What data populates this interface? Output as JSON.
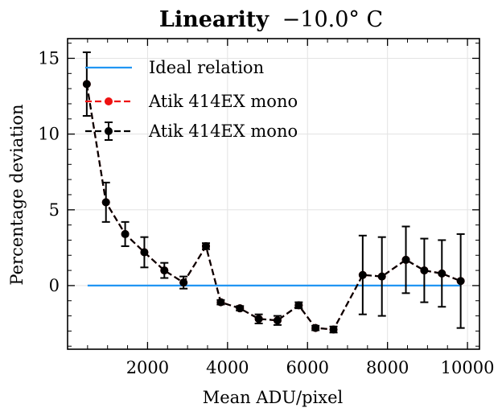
{
  "chart_data": {
    "type": "line",
    "title": "Linearity",
    "title_suffix": "−10.0° C",
    "xlabel": "Mean ADU/pixel",
    "ylabel": "Percentage deviation",
    "xlim": [
      0,
      10300
    ],
    "ylim": [
      -4.2,
      16.3
    ],
    "x_ticks": [
      2000,
      4000,
      6000,
      8000,
      10000
    ],
    "y_ticks": [
      0,
      5,
      10,
      15
    ],
    "x_tick_labels": [
      "2000",
      "4000",
      "6000",
      "8000",
      "10000"
    ],
    "y_tick_labels": [
      "0",
      "5",
      "10",
      "15"
    ],
    "grid": true,
    "legend_position": "top-right",
    "series": [
      {
        "name": "Ideal relation",
        "color": "#2196f3",
        "style": "solid",
        "x": [
          500,
          9850
        ],
        "y": [
          0,
          0
        ]
      },
      {
        "name": "Atik 414EX mono",
        "color": "#ee1111",
        "style": "dashed",
        "marker": "circle",
        "x": [
          480,
          960,
          1440,
          1920,
          2420,
          2900,
          3460,
          3830,
          4310,
          4780,
          5250,
          5780,
          6200,
          6650,
          7380,
          7860,
          8460,
          8920,
          9360,
          9830
        ],
        "y": [
          13.3,
          5.5,
          3.4,
          2.2,
          1.0,
          0.2,
          2.6,
          -1.1,
          -1.5,
          -2.2,
          -2.3,
          -1.3,
          -2.8,
          -2.9,
          0.7,
          0.6,
          1.7,
          1.0,
          0.8,
          0.3
        ]
      },
      {
        "name": "Atik 414EX mono",
        "color": "#000000",
        "style": "dashed",
        "marker": "circle",
        "errorbars": true,
        "x": [
          480,
          960,
          1440,
          1920,
          2420,
          2900,
          3460,
          3830,
          4310,
          4780,
          5250,
          5780,
          6200,
          6650,
          7380,
          7860,
          8460,
          8920,
          9360,
          9830
        ],
        "y": [
          13.3,
          5.5,
          3.4,
          2.2,
          1.0,
          0.2,
          2.6,
          -1.1,
          -1.5,
          -2.2,
          -2.3,
          -1.3,
          -2.8,
          -2.9,
          0.7,
          0.6,
          1.7,
          1.0,
          0.8,
          0.3
        ],
        "yerr": [
          2.1,
          1.3,
          0.8,
          1.0,
          0.5,
          0.4,
          0.2,
          0.15,
          0.15,
          0.3,
          0.3,
          0.2,
          0.15,
          0.2,
          2.6,
          2.6,
          2.2,
          2.1,
          2.2,
          3.1
        ]
      }
    ]
  }
}
